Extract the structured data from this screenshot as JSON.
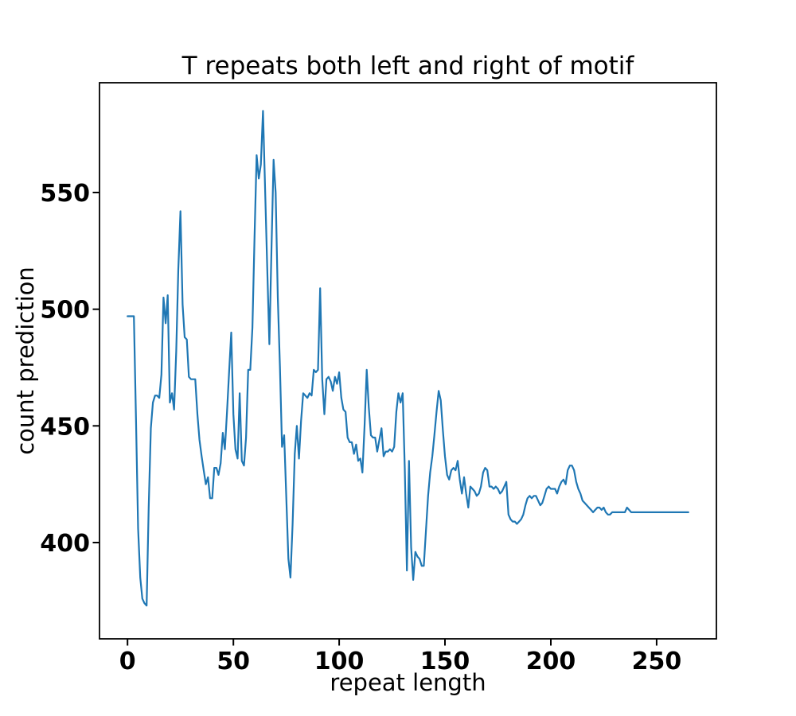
{
  "title": "T repeats both left and right of motif",
  "chart_data": {
    "type": "line",
    "title": "T repeats both left and right of motif",
    "xlabel": "repeat length",
    "ylabel": "count prediction",
    "legend": null,
    "grid": false,
    "line_color": "#1f77b4",
    "x_ticks": [
      0,
      50,
      100,
      150,
      200,
      250
    ],
    "y_ticks": [
      400,
      450,
      500,
      550
    ],
    "xlim": [
      -13.25,
      278.25
    ],
    "ylim": [
      358.75,
      597.05
    ],
    "x_start": 0,
    "x_step": 1,
    "values": [
      497,
      497,
      497,
      497,
      452,
      406,
      385,
      376,
      374,
      373,
      415,
      449,
      460,
      463,
      463,
      462,
      472,
      505,
      494,
      506,
      460,
      464,
      457,
      482,
      517,
      542,
      502,
      488,
      487,
      471,
      470,
      470,
      470,
      455,
      444,
      437,
      431,
      425,
      428,
      419,
      419,
      432,
      432,
      429,
      434,
      447,
      440,
      456,
      473,
      490,
      455,
      440,
      436,
      464,
      435,
      433,
      445,
      474,
      474,
      492,
      530,
      566,
      556,
      562,
      585,
      552,
      518,
      485,
      525,
      564,
      550,
      505,
      475,
      441,
      446,
      420,
      393,
      385,
      408,
      438,
      450,
      436,
      452,
      464,
      463,
      462,
      464,
      463,
      474,
      473,
      474,
      509,
      470,
      455,
      470,
      471,
      469,
      465,
      471,
      468,
      473,
      462,
      457,
      456,
      445,
      443,
      443,
      438,
      442,
      435,
      436,
      430,
      450,
      474,
      458,
      446,
      445,
      445,
      439,
      444,
      449,
      437,
      439,
      439,
      440,
      439,
      441,
      456,
      464,
      460,
      464,
      432,
      388,
      435,
      398,
      384,
      396,
      394,
      393,
      390,
      390,
      405,
      420,
      430,
      437,
      446,
      456,
      465,
      461,
      448,
      437,
      429,
      427,
      431,
      432,
      431,
      435,
      427,
      421,
      428,
      421,
      415,
      424,
      423,
      422,
      420,
      421,
      424,
      430,
      432,
      431,
      424,
      424,
      423,
      424,
      423,
      421,
      422,
      424,
      426,
      412,
      410,
      409,
      409,
      408,
      409,
      410,
      412,
      416,
      419,
      420,
      419,
      420,
      420,
      418,
      416,
      417,
      420,
      423,
      424,
      423,
      423,
      423,
      421,
      424,
      426,
      427,
      425,
      431,
      433,
      433,
      431,
      426,
      423,
      421,
      418,
      417,
      416,
      415,
      414,
      413,
      414,
      415,
      415,
      414,
      415,
      413,
      412,
      412,
      413,
      413,
      413,
      413,
      413,
      413,
      413,
      415,
      414,
      413,
      413,
      413,
      413,
      413,
      413,
      413,
      413,
      413,
      413,
      413,
      413,
      413,
      413,
      413,
      413,
      413,
      413,
      413,
      413,
      413,
      413,
      413,
      413,
      413,
      413,
      413,
      413
    ]
  }
}
